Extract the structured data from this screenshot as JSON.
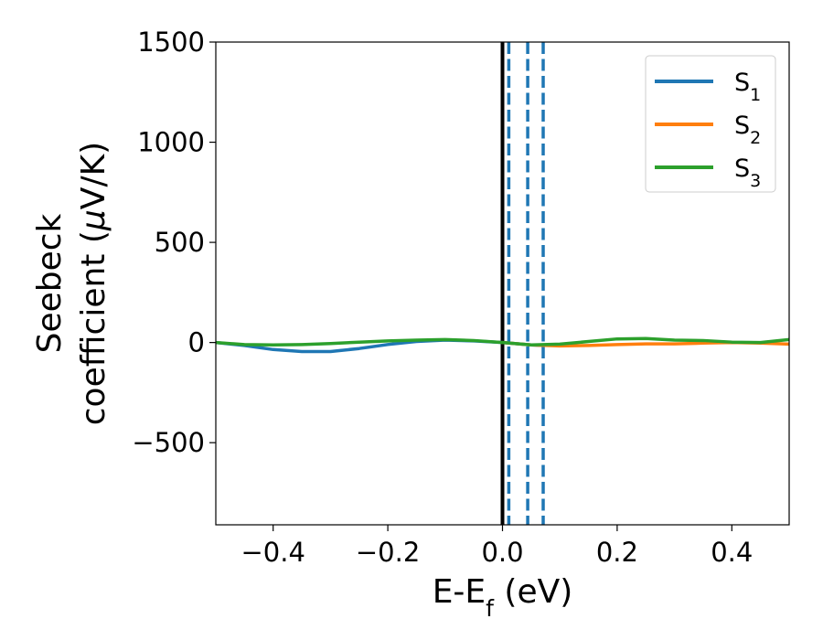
{
  "chart_data": {
    "type": "line",
    "xlabel": {
      "main": "E-E",
      "sub": "f",
      "unit": " (eV)"
    },
    "ylabel": {
      "line1": "Seebeck",
      "line2_prefix": "coefficient  (",
      "mu": "μ",
      "line2_suffix": "V/K)"
    },
    "xlim": [
      -0.5,
      0.5
    ],
    "ylim": [
      -910,
      1500
    ],
    "x_ticks": [
      -0.4,
      -0.2,
      0.0,
      0.2,
      0.4
    ],
    "x_tick_labels": [
      "−0.4",
      "−0.2",
      "0.0",
      "0.2",
      "0.4"
    ],
    "y_ticks": [
      -500,
      0,
      500,
      1000,
      1500
    ],
    "y_tick_labels": [
      "−500",
      "0",
      "500",
      "1000",
      "1500"
    ],
    "grid": false,
    "legend_position": "top-right",
    "series": [
      {
        "name": "S",
        "sub": "1",
        "color": "#1f77b4",
        "x": [
          -0.5,
          -0.45,
          -0.4,
          -0.35,
          -0.3,
          -0.25,
          -0.2,
          -0.15,
          -0.1,
          -0.05,
          0.0,
          0.05,
          0.07
        ],
        "values": [
          0,
          -15,
          -35,
          -45,
          -45,
          -30,
          -10,
          5,
          12,
          8,
          0,
          -12,
          -15
        ]
      },
      {
        "name": "S",
        "sub": "2",
        "color": "#ff7f0e",
        "x": [
          0.0,
          0.05,
          0.1,
          0.15,
          0.2,
          0.25,
          0.3,
          0.35,
          0.4,
          0.45,
          0.5
        ],
        "values": [
          0,
          -12,
          -17,
          -15,
          -10,
          -7,
          -7,
          -3,
          0,
          -3,
          -8
        ]
      },
      {
        "name": "S",
        "sub": "3",
        "color": "#2ca02c",
        "x": [
          -0.5,
          -0.45,
          -0.4,
          -0.35,
          -0.3,
          -0.25,
          -0.2,
          -0.15,
          -0.1,
          -0.05,
          0.0,
          0.05,
          0.1,
          0.15,
          0.2,
          0.25,
          0.3,
          0.35,
          0.4,
          0.45,
          0.5
        ],
        "values": [
          0,
          -10,
          -12,
          -10,
          -5,
          2,
          8,
          12,
          15,
          10,
          0,
          -12,
          -8,
          5,
          18,
          20,
          12,
          10,
          2,
          0,
          15
        ]
      }
    ],
    "vlines": [
      {
        "x": 0.0,
        "color": "#000000",
        "style": "solid"
      },
      {
        "x": 0.011,
        "color": "#1f77b4",
        "style": "dashed"
      },
      {
        "x": 0.044,
        "color": "#1f77b4",
        "style": "dashed"
      },
      {
        "x": 0.071,
        "color": "#1f77b4",
        "style": "dashed"
      }
    ]
  }
}
